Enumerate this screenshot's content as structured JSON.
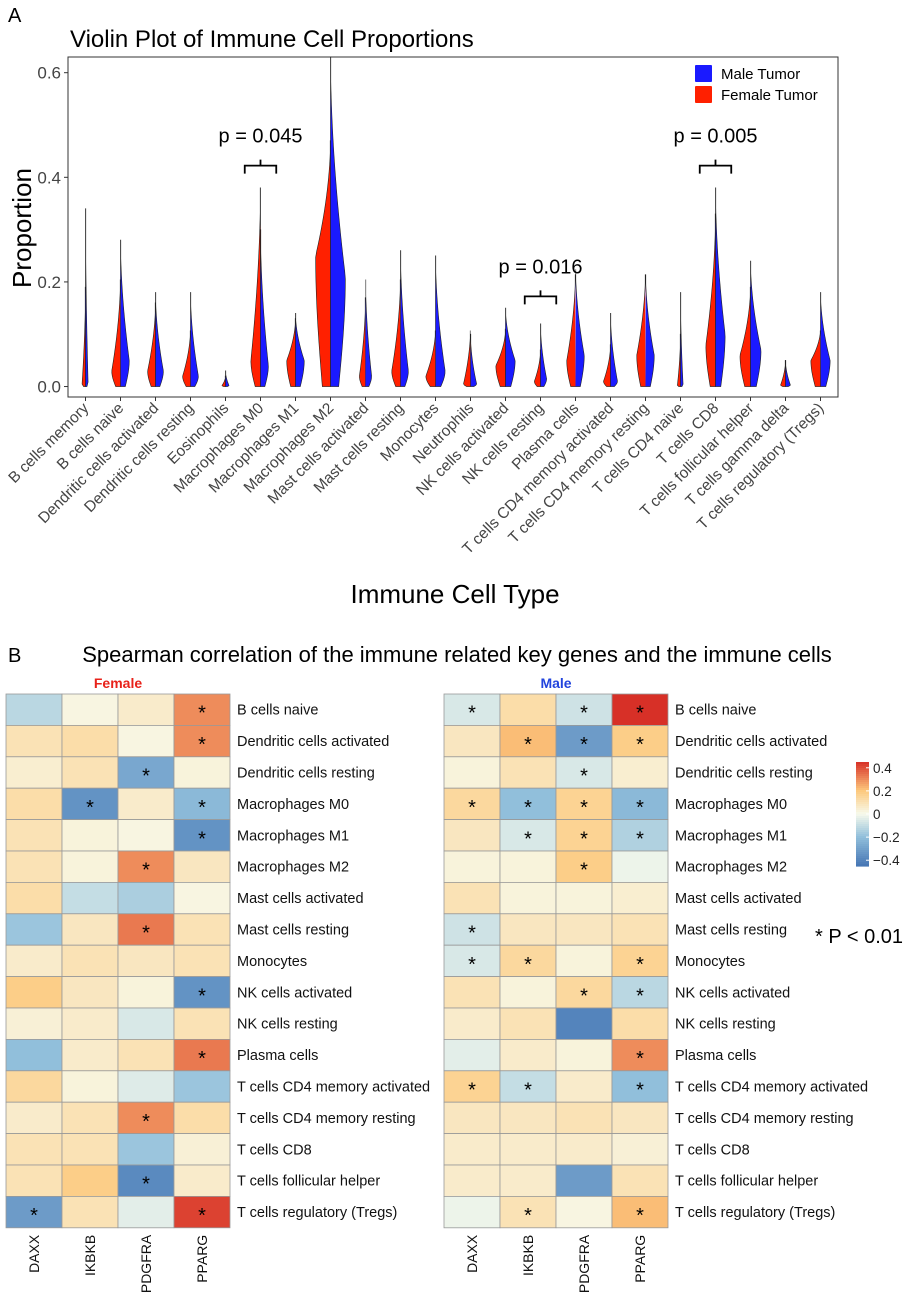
{
  "panel_a_label": "A",
  "panel_b_label": "B",
  "chart_data": [
    {
      "type": "violin",
      "title": "Violin Plot of Immune Cell Proportions",
      "xlabel": "Immune Cell Type",
      "ylabel": "Proportion",
      "ylim": [
        -0.02,
        0.63
      ],
      "yticks": [
        0.0,
        0.2,
        0.4,
        0.6
      ],
      "ytick_labels": [
        "0.0",
        "0.2",
        "0.4",
        "0.6"
      ],
      "grid": false,
      "legend_position": "top-right",
      "series": [
        {
          "name": "Male Tumor",
          "color": "#1a1aff"
        },
        {
          "name": "Female Tumor",
          "color": "#ff2000"
        }
      ],
      "categories": [
        "B cells memory",
        "B cells naive",
        "Dendritic cells activated",
        "Dendritic cells resting",
        "Eosinophils",
        "Macrophages M0",
        "Macrophages M1",
        "Macrophages M2",
        "Mast cells activated",
        "Mast cells resting",
        "Monocytes",
        "Neutrophils",
        "NK cells activated",
        "NK cells resting",
        "Plasma cells",
        "T cells CD4 memory activated",
        "T cells CD4 memory resting",
        "T cells CD4 naive",
        "T cells CD8",
        "T cells follicular helper",
        "T cells gamma delta",
        "T cells regulatory (Tregs)"
      ],
      "female": [
        {
          "max": 0.19,
          "mode": 0.003,
          "w": 0.2
        },
        {
          "max": 0.21,
          "mode": 0.03,
          "w": 0.5
        },
        {
          "max": 0.16,
          "mode": 0.03,
          "w": 0.45
        },
        {
          "max": 0.11,
          "mode": 0.02,
          "w": 0.45
        },
        {
          "max": 0.02,
          "mode": 0.002,
          "w": 0.2
        },
        {
          "max": 0.38,
          "mode": 0.05,
          "w": 0.55
        },
        {
          "max": 0.13,
          "mode": 0.05,
          "w": 0.5
        },
        {
          "max": 0.47,
          "mode": 0.25,
          "w": 0.85
        },
        {
          "max": 0.17,
          "mode": 0.02,
          "w": 0.35
        },
        {
          "max": 0.21,
          "mode": 0.03,
          "w": 0.5
        },
        {
          "max": 0.11,
          "mode": 0.02,
          "w": 0.55
        },
        {
          "max": 0.11,
          "mode": 0.005,
          "w": 0.4
        },
        {
          "max": 0.11,
          "mode": 0.04,
          "w": 0.55
        },
        {
          "max": 0.07,
          "mode": 0.01,
          "w": 0.35
        },
        {
          "max": 0.22,
          "mode": 0.05,
          "w": 0.5
        },
        {
          "max": 0.08,
          "mode": 0.01,
          "w": 0.4
        },
        {
          "max": 0.22,
          "mode": 0.06,
          "w": 0.5
        },
        {
          "max": 0.1,
          "mode": 0.002,
          "w": 0.18
        },
        {
          "max": 0.33,
          "mode": 0.08,
          "w": 0.55
        },
        {
          "max": 0.19,
          "mode": 0.06,
          "w": 0.6
        },
        {
          "max": 0.05,
          "mode": 0.003,
          "w": 0.28
        },
        {
          "max": 0.11,
          "mode": 0.05,
          "w": 0.55
        }
      ],
      "male": [
        {
          "max": 0.34,
          "mode": 0.005,
          "w": 0.15
        },
        {
          "max": 0.28,
          "mode": 0.05,
          "w": 0.5
        },
        {
          "max": 0.18,
          "mode": 0.03,
          "w": 0.45
        },
        {
          "max": 0.18,
          "mode": 0.02,
          "w": 0.45
        },
        {
          "max": 0.03,
          "mode": 0.002,
          "w": 0.2
        },
        {
          "max": 0.3,
          "mode": 0.04,
          "w": 0.45
        },
        {
          "max": 0.14,
          "mode": 0.05,
          "w": 0.5
        },
        {
          "max": 0.63,
          "mode": 0.21,
          "w": 0.85
        },
        {
          "max": 0.21,
          "mode": 0.02,
          "w": 0.35
        },
        {
          "max": 0.26,
          "mode": 0.03,
          "w": 0.45
        },
        {
          "max": 0.25,
          "mode": 0.03,
          "w": 0.55
        },
        {
          "max": 0.1,
          "mode": 0.005,
          "w": 0.35
        },
        {
          "max": 0.15,
          "mode": 0.05,
          "w": 0.55
        },
        {
          "max": 0.12,
          "mode": 0.015,
          "w": 0.35
        },
        {
          "max": 0.23,
          "mode": 0.06,
          "w": 0.5
        },
        {
          "max": 0.14,
          "mode": 0.01,
          "w": 0.4
        },
        {
          "max": 0.22,
          "mode": 0.06,
          "w": 0.5
        },
        {
          "max": 0.18,
          "mode": 0.002,
          "w": 0.15
        },
        {
          "max": 0.38,
          "mode": 0.1,
          "w": 0.55
        },
        {
          "max": 0.24,
          "mode": 0.07,
          "w": 0.6
        },
        {
          "max": 0.05,
          "mode": 0.003,
          "w": 0.28
        },
        {
          "max": 0.18,
          "mode": 0.05,
          "w": 0.55
        }
      ],
      "annotations": [
        {
          "text": "p = 0.045",
          "category_index": 5,
          "y": 0.43
        },
        {
          "text": "p = 0.016",
          "category_index": 13,
          "y": 0.18
        },
        {
          "text": "p = 0.005",
          "category_index": 18,
          "y": 0.43
        }
      ]
    },
    {
      "type": "heatmap",
      "title": "Spearman correlation of the immune related key genes and the immune cells",
      "columns": [
        "DAXX",
        "IKBKB",
        "PDGFRA",
        "PPARG"
      ],
      "rows": [
        "B cells naive",
        "Dendritic cells activated",
        "Dendritic cells resting",
        "Macrophages M0",
        "Macrophages M1",
        "Macrophages M2",
        "Mast cells activated",
        "Mast cells resting",
        "Monocytes",
        "NK cells activated",
        "NK cells resting",
        "Plasma cells",
        "T cells CD4 memory activated",
        "T cells CD4 memory resting",
        "T cells CD8",
        "T cells follicular helper",
        "T cells regulatory (Tregs)"
      ],
      "colorbar_ticks": [
        0.4,
        0.2,
        0,
        -0.2,
        -0.4
      ],
      "colorbar_labels": [
        "0.4",
        "0.2",
        "0",
        "−0.2",
        "−0.4"
      ],
      "significance_note": "* P < 0.01",
      "panels": [
        {
          "name": "Female",
          "color": "#e8221a",
          "values": [
            [
              -0.12,
              0.02,
              0.06,
              0.3
            ],
            [
              0.1,
              0.12,
              0.02,
              0.3
            ],
            [
              0.05,
              0.1,
              -0.28,
              0.03
            ],
            [
              0.12,
              -0.35,
              0.06,
              -0.22
            ],
            [
              0.1,
              0.03,
              0.02,
              -0.35
            ],
            [
              0.1,
              0.03,
              0.3,
              0.08
            ],
            [
              0.12,
              -0.1,
              -0.15,
              0.02
            ],
            [
              -0.18,
              0.08,
              0.33,
              0.1
            ],
            [
              0.06,
              0.1,
              0.08,
              0.1
            ],
            [
              0.18,
              0.08,
              0.03,
              -0.35
            ],
            [
              0.04,
              0.06,
              -0.06,
              0.1
            ],
            [
              -0.2,
              0.06,
              0.1,
              0.33
            ],
            [
              0.14,
              0.03,
              -0.05,
              -0.18
            ],
            [
              0.06,
              0.1,
              0.3,
              0.12
            ],
            [
              0.1,
              0.1,
              -0.18,
              0.04
            ],
            [
              0.1,
              0.18,
              -0.38,
              0.06
            ],
            [
              -0.32,
              0.1,
              -0.04,
              0.42
            ]
          ],
          "stars": [
            [
              false,
              false,
              false,
              true
            ],
            [
              false,
              false,
              false,
              true
            ],
            [
              false,
              false,
              true,
              false
            ],
            [
              false,
              true,
              false,
              true
            ],
            [
              false,
              false,
              false,
              true
            ],
            [
              false,
              false,
              true,
              false
            ],
            [
              false,
              false,
              false,
              false
            ],
            [
              false,
              false,
              true,
              false
            ],
            [
              false,
              false,
              false,
              false
            ],
            [
              false,
              false,
              false,
              true
            ],
            [
              false,
              false,
              false,
              false
            ],
            [
              false,
              false,
              false,
              true
            ],
            [
              false,
              false,
              false,
              false
            ],
            [
              false,
              false,
              true,
              false
            ],
            [
              false,
              false,
              false,
              false
            ],
            [
              false,
              false,
              true,
              false
            ],
            [
              true,
              false,
              false,
              true
            ]
          ]
        },
        {
          "name": "Male",
          "color": "#2244dd",
          "values": [
            [
              -0.06,
              0.12,
              -0.08,
              0.45
            ],
            [
              0.08,
              0.22,
              -0.32,
              0.18
            ],
            [
              0.03,
              0.1,
              -0.06,
              0.05
            ],
            [
              0.14,
              -0.2,
              0.16,
              -0.22
            ],
            [
              0.08,
              -0.06,
              0.16,
              -0.14
            ],
            [
              0.03,
              0.03,
              0.18,
              -0.02
            ],
            [
              0.1,
              0.03,
              0.03,
              0.05
            ],
            [
              -0.08,
              0.08,
              0.08,
              0.1
            ],
            [
              -0.06,
              0.14,
              0.03,
              0.16
            ],
            [
              0.1,
              0.03,
              0.14,
              -0.12
            ],
            [
              0.06,
              0.1,
              -0.4,
              0.12
            ],
            [
              -0.04,
              0.06,
              0.03,
              0.3
            ],
            [
              0.16,
              -0.1,
              0.06,
              -0.2
            ],
            [
              0.08,
              0.08,
              0.1,
              0.08
            ],
            [
              0.06,
              0.06,
              0.06,
              0.04
            ],
            [
              0.06,
              0.06,
              -0.32,
              0.1
            ],
            [
              -0.02,
              0.1,
              0.02,
              0.22
            ]
          ],
          "stars": [
            [
              true,
              false,
              true,
              true
            ],
            [
              false,
              true,
              true,
              true
            ],
            [
              false,
              false,
              true,
              false
            ],
            [
              true,
              true,
              true,
              true
            ],
            [
              false,
              true,
              true,
              true
            ],
            [
              false,
              false,
              true,
              false
            ],
            [
              false,
              false,
              false,
              false
            ],
            [
              true,
              false,
              false,
              false
            ],
            [
              true,
              true,
              false,
              true
            ],
            [
              false,
              false,
              true,
              true
            ],
            [
              false,
              false,
              false,
              false
            ],
            [
              false,
              false,
              false,
              true
            ],
            [
              true,
              true,
              false,
              true
            ],
            [
              false,
              false,
              false,
              false
            ],
            [
              false,
              false,
              false,
              false
            ],
            [
              false,
              false,
              false,
              false
            ],
            [
              false,
              true,
              false,
              true
            ]
          ]
        }
      ]
    }
  ]
}
